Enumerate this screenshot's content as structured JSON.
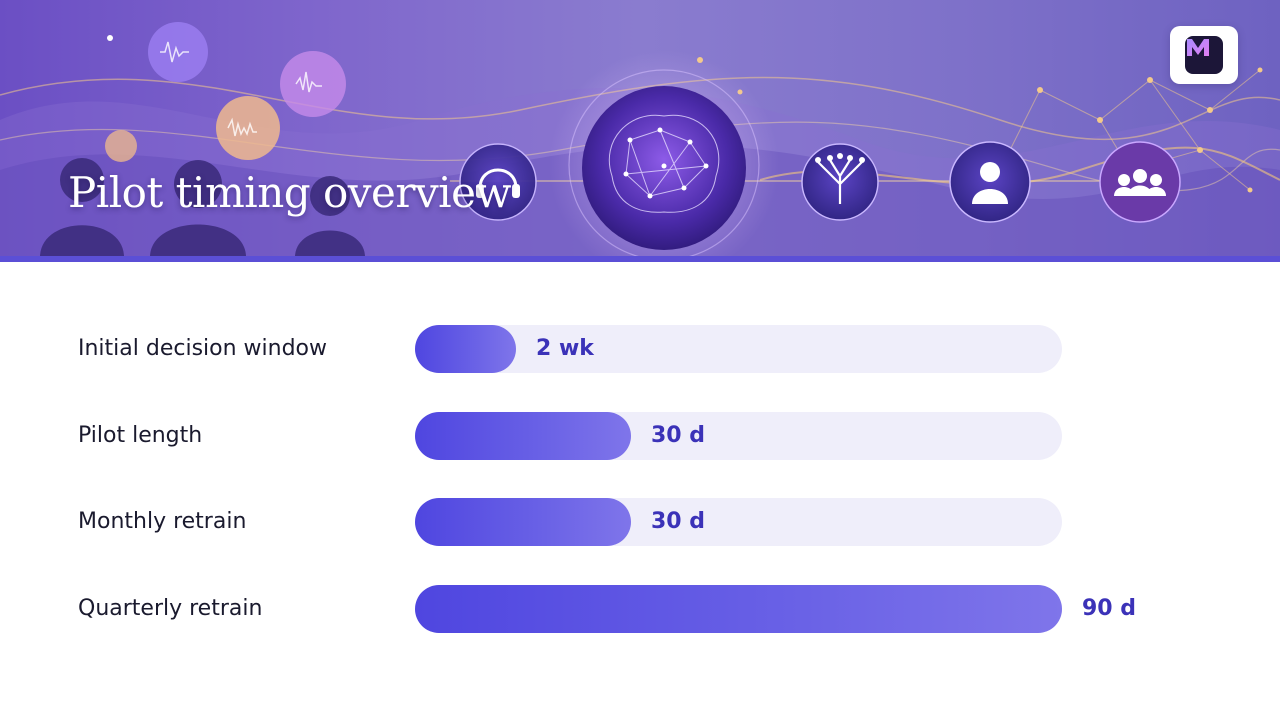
{
  "header": {
    "title": "Pilot timing overview",
    "logo_letter": "M",
    "banner_icons": [
      "waveform-bubble-icon",
      "headset-icon",
      "brain-network-icon",
      "tree-icon",
      "user-icon",
      "team-icon"
    ]
  },
  "colors": {
    "bar": "#4f46e0",
    "track": "#efeefa",
    "value_text": "#3b32b8",
    "banner": "#7f66cc"
  },
  "chart_data": {
    "type": "bar",
    "orientation": "horizontal",
    "title": "Pilot timing overview",
    "categories": [
      "Initial decision window",
      "Pilot length",
      "Monthly retrain",
      "Quarterly retrain"
    ],
    "values": [
      14,
      30,
      30,
      90
    ],
    "value_labels": [
      "2 wk",
      "30 d",
      "30 d",
      "90 d"
    ],
    "unit": "days",
    "xlim": [
      0,
      90
    ],
    "grid": false,
    "legend": "none"
  }
}
